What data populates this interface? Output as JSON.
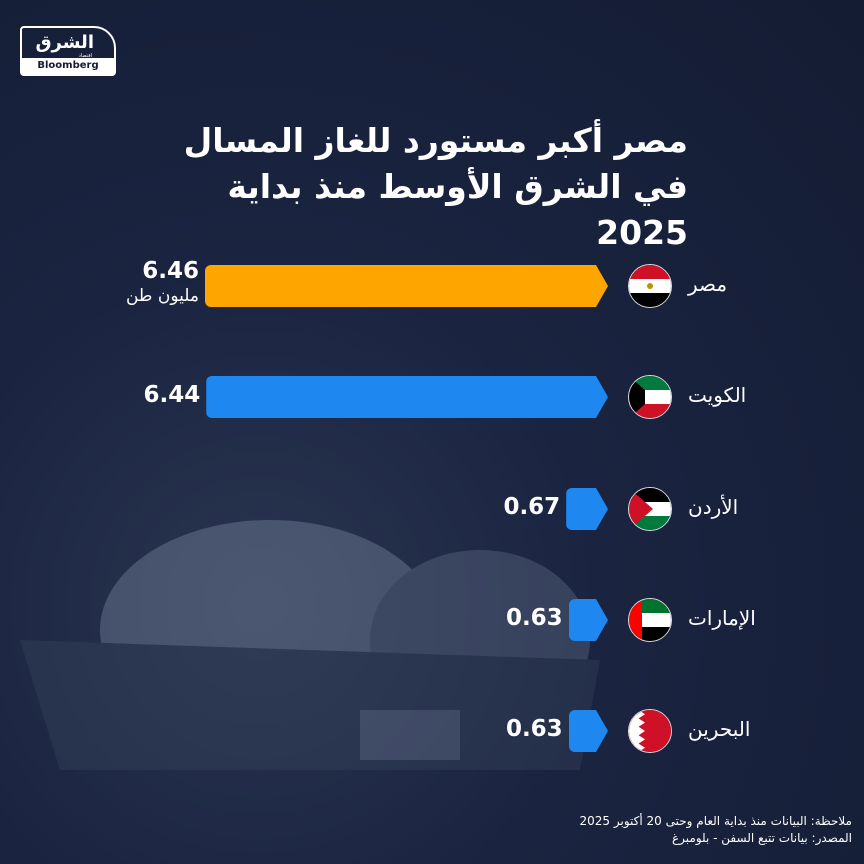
{
  "logo": {
    "arabic": "الشرق",
    "sub": "اقتصاد",
    "brand": "Bloomberg"
  },
  "chart_data": {
    "type": "bar",
    "orientation": "horizontal",
    "title": "مصر أكبر مستورد للغاز المسال في الشرق الأوسط منذ بداية 2025",
    "categories": [
      "مصر",
      "الكويت",
      "الأردن",
      "الإمارات",
      "البحرين"
    ],
    "values": [
      6.46,
      6.44,
      0.67,
      0.63,
      0.63
    ],
    "value_labels": [
      "6.46",
      "6.44",
      "0.67",
      "0.63",
      "0.63"
    ],
    "unit": "مليون طن",
    "colors": [
      "#ffa500",
      "#1e88f0",
      "#1e88f0",
      "#1e88f0",
      "#1e88f0"
    ],
    "xlim": [
      0,
      6.46
    ]
  },
  "footer": {
    "note": "ملاحظة: البيانات منذ بداية العام وحتى 20 أكتوبر 2025",
    "source": "المصدر: بيانات تتبع السفن - بلومبرغ"
  }
}
